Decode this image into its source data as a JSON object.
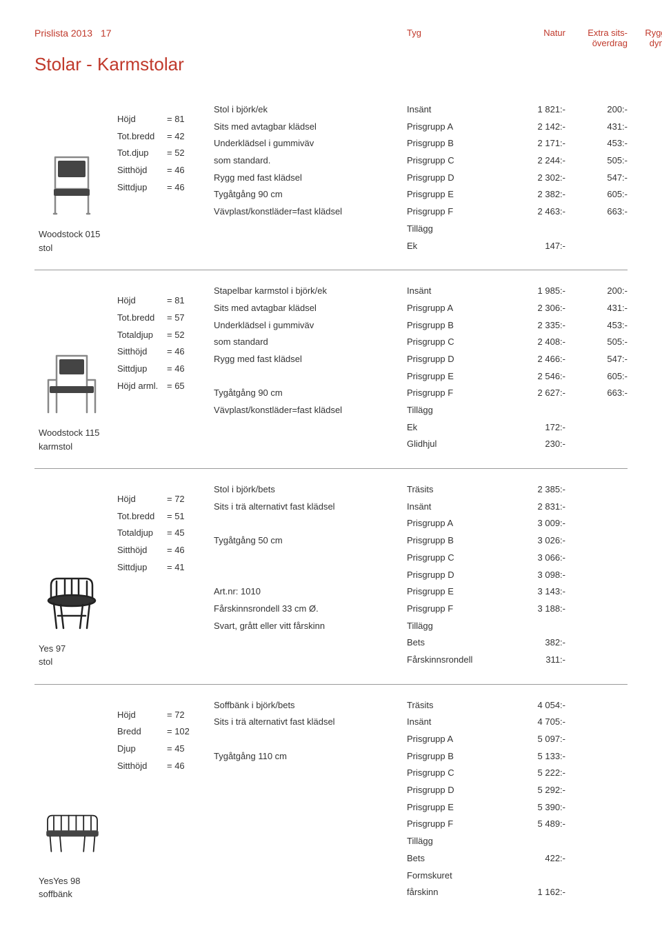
{
  "page": {
    "titleLine": "Prislista 2013",
    "pageNum": "17",
    "subtitle": "Stolar - Karmstolar"
  },
  "headerCols": {
    "c1": "Tyg",
    "c2a": "Natur",
    "c3a": "Extra sits-",
    "c3b": "överdrag",
    "c4a": "Rygg-",
    "c4b": "dyna"
  },
  "products": [
    {
      "icon": "chair-simple",
      "name1": "Woodstock 015",
      "name2": "stol",
      "dims": [
        {
          "l": "Höjd",
          "v": "= 81"
        },
        {
          "l": "Tot.bredd",
          "v": "= 42"
        },
        {
          "l": "Tot.djup",
          "v": "= 52"
        },
        {
          "l": "Sitthöjd",
          "v": "= 46"
        },
        {
          "l": "Sittdjup",
          "v": "= 46"
        }
      ],
      "desc": [
        "Stol i björk/ek",
        "Sits med avtagbar klädsel",
        "Underklädsel i gummiväv",
        "som standard.",
        "Rygg med fast klädsel",
        "Tygåtgång  90 cm",
        "Vävplast/konstläder=fast klädsel"
      ],
      "prices": [
        {
          "l": "Insänt",
          "v1": "1 821:-",
          "v2": "200:-"
        },
        {
          "l": "Prisgrupp A",
          "v1": "2 142:-",
          "v2": "431:-"
        },
        {
          "l": "Prisgrupp B",
          "v1": "2 171:-",
          "v2": "453:-"
        },
        {
          "l": "Prisgrupp C",
          "v1": "2 244:-",
          "v2": "505:-"
        },
        {
          "l": "Prisgrupp D",
          "v1": "2 302:-",
          "v2": "547:-"
        },
        {
          "l": "Prisgrupp E",
          "v1": "2 382:-",
          "v2": "605:-"
        },
        {
          "l": "Prisgrupp F",
          "v1": "2 463:-",
          "v2": "663:-"
        },
        {
          "l": "Tillägg",
          "v1": "",
          "v2": ""
        },
        {
          "l": "Ek",
          "v1": "147:-",
          "v2": ""
        }
      ]
    },
    {
      "icon": "chair-arm",
      "name1": "Woodstock 115",
      "name2": "karmstol",
      "dims": [
        {
          "l": "Höjd",
          "v": "= 81"
        },
        {
          "l": "Tot.bredd",
          "v": "= 57"
        },
        {
          "l": "Totaldjup",
          "v": "= 52"
        },
        {
          "l": "Sitthöjd",
          "v": "= 46"
        },
        {
          "l": "Sittdjup",
          "v": "= 46"
        },
        {
          "l": "Höjd arml.",
          "v": "= 65"
        }
      ],
      "desc": [
        "Stapelbar karmstol i björk/ek",
        "Sits med avtagbar klädsel",
        "Underklädsel i gummiväv",
        "som standard",
        "Rygg med fast klädsel",
        "",
        "Tygåtgång  90 cm",
        "Vävplast/konstläder=fast klädsel"
      ],
      "prices": [
        {
          "l": "Insänt",
          "v1": "1 985:-",
          "v2": "200:-"
        },
        {
          "l": "Prisgrupp A",
          "v1": "2 306:-",
          "v2": "431:-"
        },
        {
          "l": "Prisgrupp B",
          "v1": "2 335:-",
          "v2": "453:-"
        },
        {
          "l": "Prisgrupp C",
          "v1": "2 408:-",
          "v2": "505:-"
        },
        {
          "l": "Prisgrupp D",
          "v1": "2 466:-",
          "v2": "547:-"
        },
        {
          "l": "Prisgrupp E",
          "v1": "2 546:-",
          "v2": "605:-"
        },
        {
          "l": "Prisgrupp F",
          "v1": "2 627:-",
          "v2": "663:-"
        },
        {
          "l": "Tillägg",
          "v1": "",
          "v2": ""
        },
        {
          "l": "Ek",
          "v1": "172:-",
          "v2": ""
        },
        {
          "l": "Glidhjul",
          "v1": "230:-",
          "v2": ""
        }
      ]
    },
    {
      "icon": "chair-rounded",
      "name1": "Yes 97",
      "name2": "stol",
      "dims": [
        {
          "l": "Höjd",
          "v": "= 72"
        },
        {
          "l": "Tot.bredd",
          "v": "= 51"
        },
        {
          "l": "Totaldjup",
          "v": "= 45"
        },
        {
          "l": "Sitthöjd",
          "v": "= 46"
        },
        {
          "l": "Sittdjup",
          "v": "= 41"
        }
      ],
      "desc": [
        "Stol i björk/bets",
        "Sits i trä alternativt fast klädsel",
        "",
        "Tygåtgång  50 cm",
        "",
        "",
        "Art.nr: 1010",
        "Fårskinnsrondell 33 cm Ø.",
        "Svart, grått eller vitt fårskinn"
      ],
      "prices": [
        {
          "l": "Träsits",
          "v1": "2 385:-",
          "v2": ""
        },
        {
          "l": "Insänt",
          "v1": "2 831:-",
          "v2": ""
        },
        {
          "l": "Prisgrupp A",
          "v1": "3 009:-",
          "v2": ""
        },
        {
          "l": "Prisgrupp B",
          "v1": "3 026:-",
          "v2": ""
        },
        {
          "l": "Prisgrupp C",
          "v1": "3 066:-",
          "v2": ""
        },
        {
          "l": "Prisgrupp D",
          "v1": "3 098:-",
          "v2": ""
        },
        {
          "l": "Prisgrupp E",
          "v1": "3 143:-",
          "v2": ""
        },
        {
          "l": "Prisgrupp F",
          "v1": "3 188:-",
          "v2": ""
        },
        {
          "l": "Tillägg",
          "v1": "",
          "v2": ""
        },
        {
          "l": "Bets",
          "v1": "382:-",
          "v2": ""
        },
        {
          "l": "Fårskinnsrondell",
          "v1": "311:-",
          "v2": ""
        }
      ]
    },
    {
      "icon": "bench",
      "name1": "YesYes 98",
      "name2": "soffbänk",
      "dims": [
        {
          "l": "Höjd",
          "v": "= 72"
        },
        {
          "l": "Bredd",
          "v": "= 102"
        },
        {
          "l": "Djup",
          "v": "= 45"
        },
        {
          "l": "Sitthöjd",
          "v": "= 46"
        }
      ],
      "desc": [
        "Soffbänk i björk/bets",
        "Sits i trä alternativt fast klädsel",
        "",
        "Tygåtgång 110 cm"
      ],
      "prices": [
        {
          "l": "Träsits",
          "v1": "4 054:-",
          "v2": ""
        },
        {
          "l": "Insänt",
          "v1": "4 705:-",
          "v2": ""
        },
        {
          "l": "Prisgrupp A",
          "v1": "5 097:-",
          "v2": ""
        },
        {
          "l": "Prisgrupp B",
          "v1": "5 133:-",
          "v2": ""
        },
        {
          "l": "Prisgrupp C",
          "v1": "5 222:-",
          "v2": ""
        },
        {
          "l": "Prisgrupp D",
          "v1": "5 292:-",
          "v2": ""
        },
        {
          "l": "Prisgrupp E",
          "v1": "5 390:-",
          "v2": ""
        },
        {
          "l": "Prisgrupp F",
          "v1": "5 489:-",
          "v2": ""
        },
        {
          "l": "Tillägg",
          "v1": "",
          "v2": ""
        },
        {
          "l": "Bets",
          "v1": "422:-",
          "v2": ""
        },
        {
          "l": "Formskuret",
          "v1": "",
          "v2": ""
        },
        {
          "l": "fårskinn",
          "v1": "1 162:-",
          "v2": ""
        }
      ]
    }
  ],
  "svgIcons": {
    "chair-simple": "<svg viewBox='0 0 90 100'><g stroke='#888' stroke-width='2.5' fill='none' stroke-linecap='round'><path d='M20 10 L20 92 M68 10 L68 92 M20 10 L68 10 M20 56 L68 56'/><rect x='24' y='15' width='40' height='24' fill='#444' stroke='none' rx='2'/><rect x='18' y='56' width='52' height='10' fill='#444' stroke='none' rx='2'/><path d='M22 92 L18 92 M70 92 L66 92'/></g></svg>",
    "chair-arm": "<svg viewBox='0 0 90 100'><g stroke='#888' stroke-width='2.5' fill='none' stroke-linecap='round'><path d='M22 10 L22 92 M66 10 L66 92 M22 10 L66 10 M10 45 L10 92 M78 45 L78 92 M10 45 L22 45 M66 45 L78 45'/><rect x='26' y='15' width='36' height='22' fill='#444' stroke='none' rx='2'/><rect x='12' y='54' width='64' height='10' fill='#444' stroke='none' rx='2'/></g></svg>",
    "chair-rounded": "<svg viewBox='0 0 90 100'><g stroke='#222' stroke-width='2.5' fill='none' stroke-linecap='round'><path d='M14 48 L14 30 Q14 20 24 20 L64 20 Q74 20 74 30 L74 48'/><path d='M22 48 L22 24 M34 48 L34 22 M44 48 L44 22 M54 48 L54 22 M66 48 L66 24'/><ellipse cx='44' cy='52' rx='34' ry='8' fill='#333'/><path d='M18 56 L22 92 M70 56 L66 92 M28 58 L32 92 M60 58 L56 92'/><path d='M24 74 L64 74'/></g></svg>",
    "bench": "<svg viewBox='0 0 100 80'><g stroke='#222' stroke-width='2' fill='none' stroke-linecap='round'><path d='M10 38 L10 22 Q10 14 18 14 L82 14 Q90 14 90 22 L90 38'/><path d='M20 38 L20 16 M32 38 L32 15 M44 38 L44 14 M56 38 L56 14 M68 38 L68 15 M80 38 L80 16'/><rect x='8' y='38' width='84' height='10' fill='#444' stroke='none' rx='3'/><path d='M14 48 L16 72 M86 48 L84 72 M30 48 L32 72 M70 48 L68 72'/></g></svg>"
  }
}
